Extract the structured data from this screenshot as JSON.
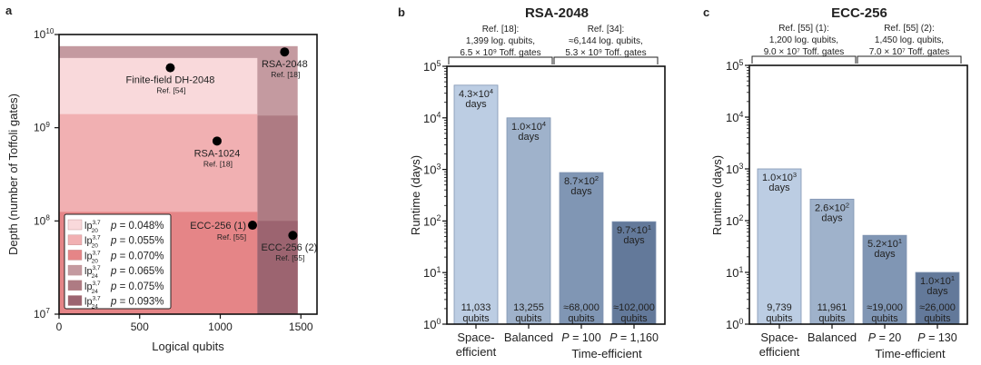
{
  "chart_data": [
    {
      "panel_label": "a",
      "type": "scatter",
      "title": "",
      "xlabel": "Logical qubits",
      "ylabel": "Depth (number of Toffoli gates)",
      "xlim": [
        0,
        1600
      ],
      "ylim": [
        10000000.0,
        10000000000.0
      ],
      "yscale": "log",
      "x_ticks": [
        0,
        500,
        1000,
        1500
      ],
      "x_tick_labels": [
        "0",
        "500",
        "1000",
        "1500"
      ],
      "y_ticks": [
        10000000.0,
        100000000.0,
        1000000000.0,
        10000000000.0
      ],
      "y_tick_labels": [
        {
          "base": "10",
          "exp": "7"
        },
        {
          "base": "10",
          "exp": "8"
        },
        {
          "base": "10",
          "exp": "9"
        },
        {
          "base": "10",
          "exp": "10"
        }
      ],
      "regions": [
        {
          "name": "lp24 p=0.065%",
          "x": [
            0,
            1480
          ],
          "y": [
            10000000.0,
            7500000000.0
          ],
          "color": "#c49aa0"
        },
        {
          "name": "lp20 p=0.048%",
          "x": [
            0,
            1230
          ],
          "y": [
            10000000.0,
            5600000000.0
          ],
          "color": "#f9d9db"
        },
        {
          "name": "lp24 p=0.075%",
          "x": [
            1230,
            1480
          ],
          "y": [
            10000000.0,
            1350000000.0
          ],
          "color": "#ae7b83"
        },
        {
          "name": "lp20 p=0.055%",
          "x": [
            0,
            1230
          ],
          "y": [
            10000000.0,
            1400000000.0
          ],
          "color": "#f1b0b2"
        },
        {
          "name": "lp20 p=0.070%",
          "x": [
            0,
            1230
          ],
          "y": [
            10000000.0,
            125000000.0
          ],
          "color": "#e58587"
        },
        {
          "name": "lp24 p=0.093%",
          "x": [
            1230,
            1480
          ],
          "y": [
            10000000.0,
            100000000.0
          ],
          "color": "#9c6470"
        }
      ],
      "points": [
        {
          "label": "RSA-2048",
          "ref": "Ref. [18]",
          "x": 1399,
          "y": 6500000000.0,
          "label_pos": "below"
        },
        {
          "label": "Finite-field DH-2048",
          "ref": "Ref. [54]",
          "x": 690,
          "y": 4400000000.0,
          "label_pos": "below"
        },
        {
          "label": "RSA-1024",
          "ref": "Ref. [18]",
          "x": 980,
          "y": 720000000.0,
          "label_pos": "below"
        },
        {
          "label": "ECC-256 (1)",
          "ref": "Ref. [55]",
          "x": 1200,
          "y": 90000000.0,
          "label_pos": "left"
        },
        {
          "label": "ECC-256 (2)",
          "ref": "Ref. [55]",
          "x": 1450,
          "y": 70000000.0,
          "label_pos": "below"
        }
      ],
      "legend": {
        "position": "bottom-left",
        "entries": [
          {
            "code": "lp",
            "sub": "20",
            "sup": "3,7",
            "p": "p = 0.048%",
            "color": "#f9d9db"
          },
          {
            "code": "lp",
            "sub": "20",
            "sup": "3,7",
            "p": "p = 0.055%",
            "color": "#f1b0b2"
          },
          {
            "code": "lp",
            "sub": "20",
            "sup": "3,7",
            "p": "p = 0.070%",
            "color": "#e58587"
          },
          {
            "code": "lp",
            "sub": "24",
            "sup": "3,7",
            "p": "p = 0.065%",
            "color": "#c49aa0"
          },
          {
            "code": "lp",
            "sub": "24",
            "sup": "3,7",
            "p": "p = 0.075%",
            "color": "#ae7b83"
          },
          {
            "code": "lp",
            "sub": "24",
            "sup": "3,7",
            "p": "p = 0.093%",
            "color": "#9c6470"
          }
        ]
      }
    },
    {
      "panel_label": "b",
      "type": "bar",
      "title": "RSA-2048",
      "ylabel": "Runtime (days)",
      "yscale": "log",
      "ylim": [
        1,
        100000.0
      ],
      "y_tick_labels": [
        {
          "base": "10",
          "exp": "0"
        },
        {
          "base": "10",
          "exp": "1"
        },
        {
          "base": "10",
          "exp": "2"
        },
        {
          "base": "10",
          "exp": "3"
        },
        {
          "base": "10",
          "exp": "4"
        },
        {
          "base": "10",
          "exp": "5"
        }
      ],
      "brackets": [
        {
          "lines": [
            "Ref. [18]:",
            "1,399 log. qubits,",
            "6.5 × 10⁹ Toff. gates"
          ],
          "bars": [
            0,
            1
          ]
        },
        {
          "lines": [
            "Ref. [34]:",
            "≈6,144 log. qubits,",
            "5.3 × 10⁹ Toff. gates"
          ],
          "bars": [
            2,
            3
          ]
        }
      ],
      "categories": [
        "Space-efficient",
        "Balanced",
        "P = 100",
        "P = 1,160"
      ],
      "category_labels": [
        {
          "line1": "Space-",
          "line2": "efficient",
          "italicP": false
        },
        {
          "line1": "Balanced",
          "line2": "",
          "italicP": false
        },
        {
          "line1": "= 100",
          "line2": "",
          "italicP": true
        },
        {
          "line1": "= 1,160",
          "line2": "",
          "italicP": true
        }
      ],
      "group_label": "Time-efficient",
      "values": [
        43000,
        10000,
        870,
        97
      ],
      "value_labels": [
        {
          "mant": "4.3×10",
          "exp": "4",
          "unit": "days"
        },
        {
          "mant": "1.0×10",
          "exp": "4",
          "unit": "days"
        },
        {
          "mant": "8.7×10",
          "exp": "2",
          "unit": "days"
        },
        {
          "mant": "9.7×10",
          "exp": "1",
          "unit": "days"
        }
      ],
      "qubit_labels": [
        "11,033",
        "13,255",
        "≈68,000",
        "≈102,000"
      ],
      "qubit_unit": "qubits",
      "colors": [
        "#bccde3",
        "#9fb2cb",
        "#8096b4",
        "#63799a"
      ]
    },
    {
      "panel_label": "c",
      "type": "bar",
      "title": "ECC-256",
      "ylabel": "Runtime (days)",
      "yscale": "log",
      "ylim": [
        1,
        100000.0
      ],
      "y_tick_labels": [
        {
          "base": "10",
          "exp": "0"
        },
        {
          "base": "10",
          "exp": "1"
        },
        {
          "base": "10",
          "exp": "2"
        },
        {
          "base": "10",
          "exp": "3"
        },
        {
          "base": "10",
          "exp": "4"
        },
        {
          "base": "10",
          "exp": "5"
        }
      ],
      "brackets": [
        {
          "lines": [
            "Ref. [55] (1):",
            "1,200 log. qubits,",
            "9.0 × 10⁷ Toff. gates"
          ],
          "bars": [
            0,
            1
          ]
        },
        {
          "lines": [
            "Ref. [55] (2):",
            "1,450 log. qubits,",
            "7.0 × 10⁷ Toff. gates"
          ],
          "bars": [
            2,
            3
          ]
        }
      ],
      "categories": [
        "Space-efficient",
        "Balanced",
        "P = 20",
        "P = 130"
      ],
      "category_labels": [
        {
          "line1": "Space-",
          "line2": "efficient",
          "italicP": false
        },
        {
          "line1": "Balanced",
          "line2": "",
          "italicP": false
        },
        {
          "line1": "= 20",
          "line2": "",
          "italicP": true
        },
        {
          "line1": "= 130",
          "line2": "",
          "italicP": true
        }
      ],
      "group_label": "Time-efficient",
      "values": [
        1000,
        260,
        52,
        10
      ],
      "value_labels": [
        {
          "mant": "1.0×10",
          "exp": "3",
          "unit": "days"
        },
        {
          "mant": "2.6×10",
          "exp": "2",
          "unit": "days"
        },
        {
          "mant": "5.2×10",
          "exp": "1",
          "unit": "days"
        },
        {
          "mant": "1.0×10",
          "exp": "1",
          "unit": "days"
        }
      ],
      "qubit_labels": [
        "9,739",
        "11,961",
        "≈19,000",
        "≈26,000"
      ],
      "qubit_unit": "qubits",
      "colors": [
        "#bccde3",
        "#9fb2cb",
        "#8096b4",
        "#63799a"
      ]
    }
  ]
}
